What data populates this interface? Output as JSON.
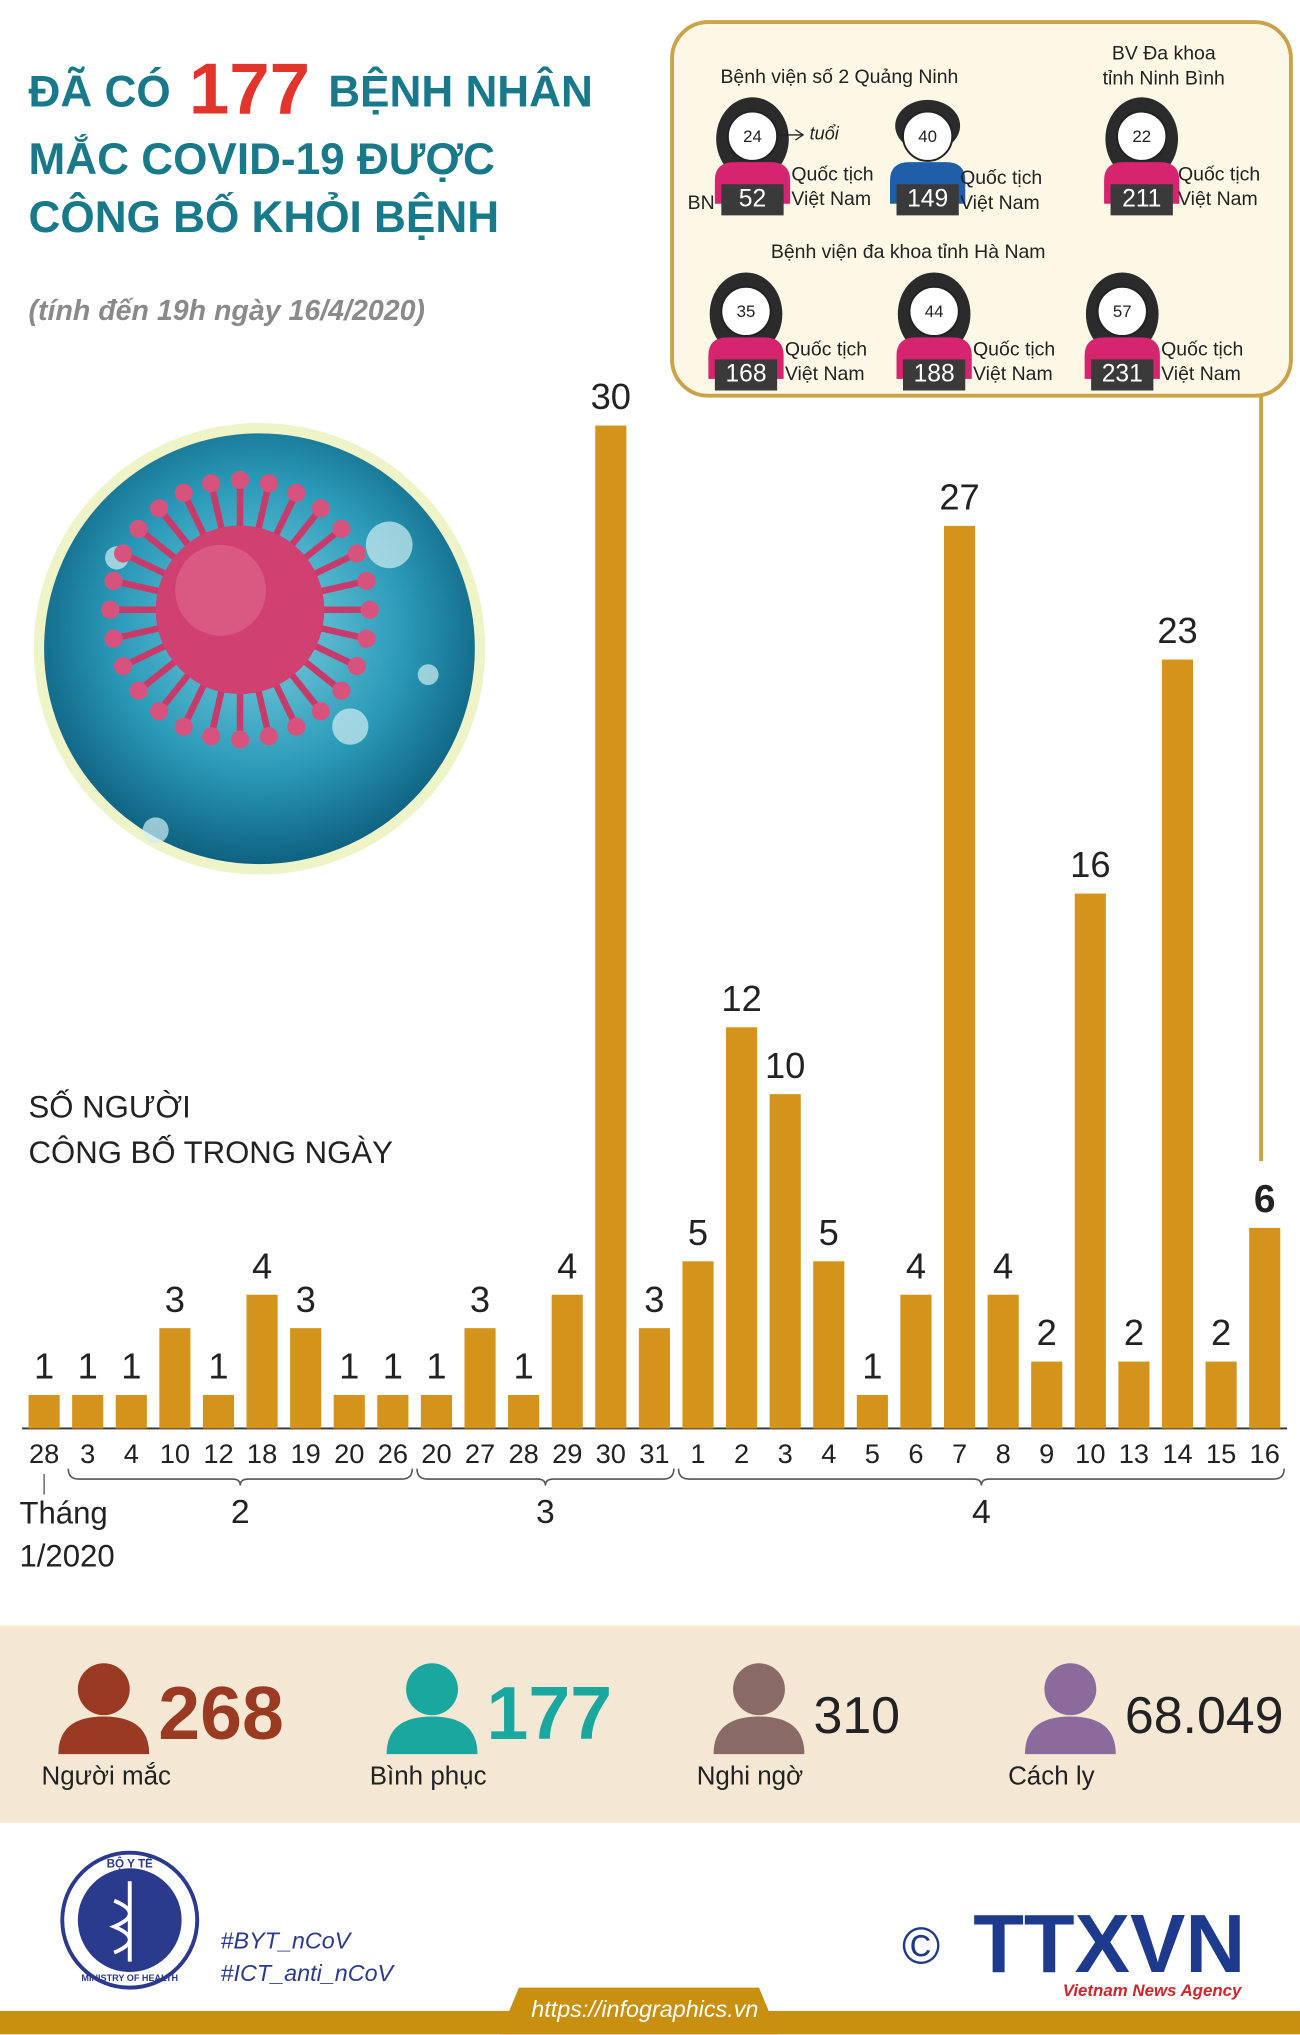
{
  "header": {
    "title": {
      "before": "ĐÃ CÓ",
      "number": 177,
      "after": "BỆNH NHÂN"
    },
    "title_line2": "MẮC COVID-19 ĐƯỢC",
    "title_line3": "CÔNG BỐ KHỎI BỆNH",
    "subtitle": "(tính đến 19h ngày 16/4/2020)"
  },
  "chart_data": {
    "type": "bar",
    "y_label": [
      "SỐ NGƯỜI",
      "CÔNG BỐ TRONG NGÀY"
    ],
    "categories": [
      "28",
      "3",
      "4",
      "10",
      "12",
      "18",
      "19",
      "20",
      "26",
      "20",
      "27",
      "28",
      "29",
      "30",
      "31",
      "1",
      "2",
      "3",
      "4",
      "5",
      "6",
      "7",
      "8",
      "9",
      "10",
      "13",
      "14",
      "15",
      "16"
    ],
    "values": [
      1,
      1,
      1,
      3,
      1,
      4,
      3,
      1,
      1,
      1,
      3,
      1,
      4,
      30,
      3,
      5,
      12,
      10,
      5,
      1,
      4,
      27,
      4,
      2,
      16,
      2,
      23,
      2,
      6
    ],
    "color": "#d4941c",
    "groups": [
      {
        "label": [
          "Tháng",
          "1/2020"
        ],
        "start": 0,
        "end": 0
      },
      {
        "label": "2",
        "start": 1,
        "end": 8
      },
      {
        "label": "3",
        "start": 9,
        "end": 14
      },
      {
        "label": "4",
        "start": 15,
        "end": 28
      }
    ]
  },
  "callout": {
    "age_unit": "tuổi",
    "id_prefix": "BN",
    "hospitals": [
      {
        "name": [
          "Bệnh viện số 2 Quảng Ninh"
        ],
        "patients": [
          {
            "age": 24,
            "id": 52,
            "nationality": [
              "Quốc tịch",
              "Việt Nam"
            ],
            "color": "#d6246e"
          },
          {
            "age": 40,
            "id": 149,
            "nationality": [
              "Quốc tịch",
              "Việt Nam"
            ],
            "color": "#1f5fa8"
          }
        ]
      },
      {
        "name": [
          "BV Đa khoa",
          "tỉnh Ninh Bình"
        ],
        "patients": [
          {
            "age": 22,
            "id": 211,
            "nationality": [
              "Quốc tịch",
              "Việt Nam"
            ],
            "color": "#d6246e"
          }
        ]
      },
      {
        "name": [
          "Bệnh viện đa khoa tỉnh Hà Nam"
        ],
        "patients": [
          {
            "age": 35,
            "id": 168,
            "nationality": [
              "Quốc tịch",
              "Việt Nam"
            ],
            "color": "#d6246e"
          },
          {
            "age": 44,
            "id": 188,
            "nationality": [
              "Quốc tịch",
              "Việt Nam"
            ],
            "color": "#d6246e"
          },
          {
            "age": 57,
            "id": 231,
            "nationality": [
              "Quốc tịch",
              "Việt Nam"
            ],
            "color": "#d6246e"
          }
        ]
      }
    ]
  },
  "stats": [
    {
      "value": 268,
      "label": "Người mắc",
      "color": "#9b3a22"
    },
    {
      "value": 177,
      "label": "Bình phục",
      "color": "#1aa7a0"
    },
    {
      "value": 310,
      "label": "Nghi ngờ",
      "color": "#8a6a66"
    },
    {
      "value": {
        "value": 68049,
        "label": "68.049"
      },
      "label": "Cách ly",
      "color": "#8b6a9c"
    }
  ],
  "footer": {
    "logo_top": "BỘ Y TẾ",
    "logo_bottom": "MINISTRY OF HEALTH",
    "hashtags": [
      "#BYT_nCoV",
      "#ICT_anti_nCoV"
    ],
    "url": "https://infographics.vn",
    "copyright": "©",
    "brand": "TTXVN",
    "brand_sub": "Vietnam News Agency"
  }
}
